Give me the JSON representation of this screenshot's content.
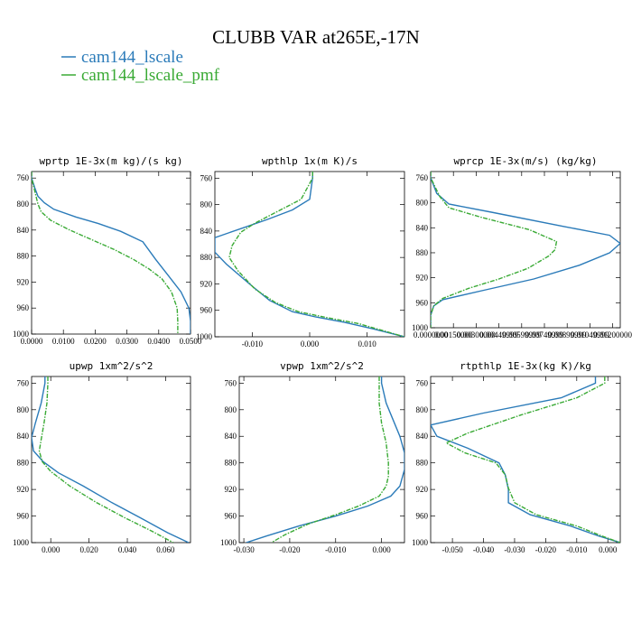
{
  "title": "CLUBB VAR at265E,-17N",
  "legend": [
    {
      "name": "cam144_lscale",
      "color": "#2b7bb9",
      "dash": false
    },
    {
      "name": "cam144_lscale_pmf",
      "color": "#3aaa35",
      "dash": true
    }
  ],
  "chart_data": [
    {
      "type": "line",
      "title": "wprtp  1E-3x(m kg)/(s kg)",
      "xlim": [
        0.0,
        0.05
      ],
      "ylim": [
        1000,
        750
      ],
      "xticks": [
        0.0,
        0.01,
        0.02,
        0.03,
        0.04,
        0.05
      ],
      "xticklabels": [
        "0.0000",
        "0.0100",
        "0.0200",
        "0.0300",
        "0.0400",
        "0.0500"
      ],
      "yticks": [
        760,
        800,
        840,
        880,
        920,
        960,
        1000
      ],
      "yticklabels": [
        "760",
        "800",
        "840",
        "880",
        "920",
        "960",
        "1000"
      ],
      "series": [
        {
          "name": "cam144_lscale",
          "x": [
            0.0,
            0.0,
            0.001,
            0.002,
            0.004,
            0.007,
            0.014,
            0.021,
            0.028,
            0.035,
            0.039,
            0.043,
            0.047,
            0.0495,
            0.05,
            0.05
          ],
          "y": [
            750,
            760,
            775,
            788,
            798,
            808,
            820,
            830,
            842,
            858,
            885,
            910,
            935,
            960,
            980,
            1000
          ]
        },
        {
          "name": "cam144_lscale_pmf",
          "x": [
            0.0,
            0.0,
            0.001,
            0.002,
            0.003,
            0.006,
            0.012,
            0.019,
            0.026,
            0.032,
            0.037,
            0.041,
            0.044,
            0.0458,
            0.046,
            0.046
          ],
          "y": [
            750,
            760,
            780,
            800,
            812,
            825,
            840,
            855,
            870,
            885,
            900,
            915,
            935,
            960,
            980,
            1000
          ]
        }
      ]
    },
    {
      "type": "line",
      "title": "wpthlp  1x(m K)/s",
      "xlim": [
        -0.0165,
        0.0165
      ],
      "ylim": [
        1000,
        750
      ],
      "xticks": [
        -0.01,
        0.0,
        0.01
      ],
      "xticklabels": [
        "-0.010",
        "0.000",
        "0.010"
      ],
      "yticks": [
        760,
        800,
        840,
        880,
        920,
        960,
        1000
      ],
      "yticklabels": [
        "760",
        "800",
        "840",
        "880",
        "920",
        "960",
        "1000"
      ],
      "series": [
        {
          "name": "cam144_lscale",
          "x": [
            0.0005,
            0.0005,
            0.0,
            -0.003,
            -0.0075,
            -0.0115,
            -0.0165,
            -0.0165,
            -0.0145,
            -0.0105,
            -0.007,
            -0.003,
            0.001,
            0.006,
            0.011,
            0.0165
          ],
          "y": [
            750,
            760,
            792,
            808,
            823,
            835,
            850,
            872,
            890,
            920,
            945,
            962,
            970,
            978,
            988,
            1000
          ]
        },
        {
          "name": "cam144_lscale_pmf",
          "x": [
            0.0005,
            0.0005,
            -0.0015,
            -0.0055,
            -0.0095,
            -0.012,
            -0.0135,
            -0.014,
            -0.0125,
            -0.0095,
            -0.006,
            -0.002,
            0.003,
            0.0085,
            0.0125,
            0.0165
          ],
          "y": [
            750,
            760,
            792,
            810,
            828,
            842,
            862,
            880,
            900,
            928,
            948,
            962,
            971,
            980,
            990,
            1000
          ]
        }
      ]
    },
    {
      "type": "line",
      "title": "wprcp  1E-3x(m/s) (kg/kg)",
      "xlim": [
        0.0,
        0.0125
      ],
      "ylim": [
        1000,
        750
      ],
      "xticks": [
        0.0,
        0.0015,
        0.003,
        0.0045,
        0.006,
        0.0075,
        0.009,
        0.0105,
        0.012
      ],
      "xticklabels": [
        "0.0000000",
        "0.00150000",
        "0.00300000",
        "0.00449999",
        "0.00599999",
        "0.00749999",
        "0.00899999",
        "0.01049999",
        "0.01200000"
      ],
      "yticks": [
        760,
        800,
        840,
        880,
        920,
        960,
        1000
      ],
      "yticklabels": [
        "760",
        "800",
        "840",
        "880",
        "920",
        "960",
        "1000"
      ],
      "series": [
        {
          "name": "cam144_lscale",
          "x": [
            0.0,
            0.0,
            0.0004,
            0.0012,
            0.004,
            0.0088,
            0.0118,
            0.0125,
            0.0118,
            0.0098,
            0.0068,
            0.0035,
            0.0008,
            0.0002,
            0.0,
            0.0
          ],
          "y": [
            750,
            760,
            785,
            802,
            815,
            838,
            852,
            865,
            880,
            900,
            922,
            940,
            955,
            965,
            980,
            1000
          ]
        },
        {
          "name": "cam144_lscale_pmf",
          "x": [
            0.0,
            0.0,
            0.0006,
            0.0012,
            0.0033,
            0.0065,
            0.0083,
            0.0082,
            0.0078,
            0.0064,
            0.0045,
            0.0025,
            0.0008,
            0.0002,
            0.0,
            0.0
          ],
          "y": [
            750,
            760,
            790,
            808,
            823,
            843,
            862,
            875,
            885,
            905,
            922,
            937,
            953,
            965,
            980,
            1000
          ]
        }
      ]
    },
    {
      "type": "line",
      "title": "upwp  1xm^2/s^2",
      "xlim": [
        -0.01,
        0.073
      ],
      "ylim": [
        1000,
        750
      ],
      "xticks": [
        0.0,
        0.02,
        0.04,
        0.06
      ],
      "xticklabels": [
        "0.000",
        "0.020",
        "0.040",
        "0.060"
      ],
      "yticks": [
        760,
        800,
        840,
        880,
        920,
        960,
        1000
      ],
      "yticklabels": [
        "760",
        "800",
        "840",
        "880",
        "920",
        "960",
        "1000"
      ],
      "series": [
        {
          "name": "cam144_lscale",
          "x": [
            -0.003,
            -0.003,
            -0.005,
            -0.008,
            -0.01,
            -0.009,
            -0.004,
            0.004,
            0.017,
            0.032,
            0.047,
            0.061,
            0.072
          ],
          "y": [
            750,
            760,
            790,
            820,
            842,
            862,
            878,
            895,
            915,
            940,
            963,
            985,
            1000
          ]
        },
        {
          "name": "cam144_lscale_pmf",
          "x": [
            -0.0015,
            -0.0015,
            -0.002,
            -0.0035,
            -0.005,
            -0.006,
            -0.0045,
            0.0,
            0.01,
            0.024,
            0.039,
            0.053,
            0.064
          ],
          "y": [
            750,
            760,
            790,
            820,
            845,
            862,
            878,
            893,
            915,
            940,
            963,
            983,
            1000
          ]
        }
      ]
    },
    {
      "type": "line",
      "title": "vpwp  1xm^2/s^2",
      "xlim": [
        -0.031,
        0.005
      ],
      "ylim": [
        1000,
        750
      ],
      "xticks": [
        -0.03,
        -0.02,
        -0.01,
        0.0
      ],
      "xticklabels": [
        "-0.030",
        "-0.020",
        "-0.010",
        "0.000"
      ],
      "yticks": [
        760,
        800,
        840,
        880,
        920,
        960,
        1000
      ],
      "yticklabels": [
        "760",
        "800",
        "840",
        "880",
        "920",
        "960",
        "1000"
      ],
      "series": [
        {
          "name": "cam144_lscale",
          "x": [
            0.0,
            0.0,
            0.001,
            0.0025,
            0.004,
            0.005,
            0.005,
            0.004,
            0.002,
            -0.003,
            -0.01,
            -0.018,
            -0.025,
            -0.0295
          ],
          "y": [
            750,
            760,
            790,
            815,
            840,
            865,
            890,
            915,
            930,
            945,
            960,
            975,
            990,
            1000
          ]
        },
        {
          "name": "cam144_lscale_pmf",
          "x": [
            -0.0005,
            -0.0005,
            -0.0005,
            0.0,
            0.001,
            0.0015,
            0.0015,
            0.001,
            -0.0005,
            -0.005,
            -0.01,
            -0.016,
            -0.021,
            -0.024
          ],
          "y": [
            750,
            760,
            790,
            820,
            850,
            880,
            900,
            915,
            930,
            945,
            958,
            972,
            988,
            1000
          ]
        }
      ]
    },
    {
      "type": "line",
      "title": "rtpthlp  1E-3x(kg K)/kg",
      "xlim": [
        -0.057,
        0.004
      ],
      "ylim": [
        1000,
        750
      ],
      "xticks": [
        -0.05,
        -0.04,
        -0.03,
        -0.02,
        -0.01,
        0.0
      ],
      "xticklabels": [
        "-0.050",
        "-0.040",
        "-0.030",
        "-0.020",
        "-0.010",
        "0.000"
      ],
      "yticks": [
        760,
        800,
        840,
        880,
        920,
        960,
        1000
      ],
      "yticklabels": [
        "760",
        "800",
        "840",
        "880",
        "920",
        "960",
        "1000"
      ],
      "series": [
        {
          "name": "cam144_lscale",
          "x": [
            -0.004,
            -0.004,
            -0.015,
            -0.04,
            -0.057,
            -0.055,
            -0.045,
            -0.035,
            -0.033,
            -0.032,
            -0.032,
            -0.025,
            -0.012,
            -0.003,
            0.004
          ],
          "y": [
            750,
            760,
            782,
            805,
            823,
            840,
            858,
            880,
            898,
            920,
            940,
            958,
            975,
            990,
            1000
          ]
        },
        {
          "name": "cam144_lscale_pmf",
          "x": [
            -0.001,
            -0.001,
            -0.01,
            -0.028,
            -0.045,
            -0.052,
            -0.046,
            -0.036,
            -0.033,
            -0.032,
            -0.03,
            -0.023,
            -0.01,
            -0.002,
            0.004
          ],
          "y": [
            750,
            760,
            782,
            808,
            835,
            850,
            865,
            880,
            898,
            918,
            940,
            958,
            975,
            990,
            1000
          ]
        }
      ]
    }
  ]
}
